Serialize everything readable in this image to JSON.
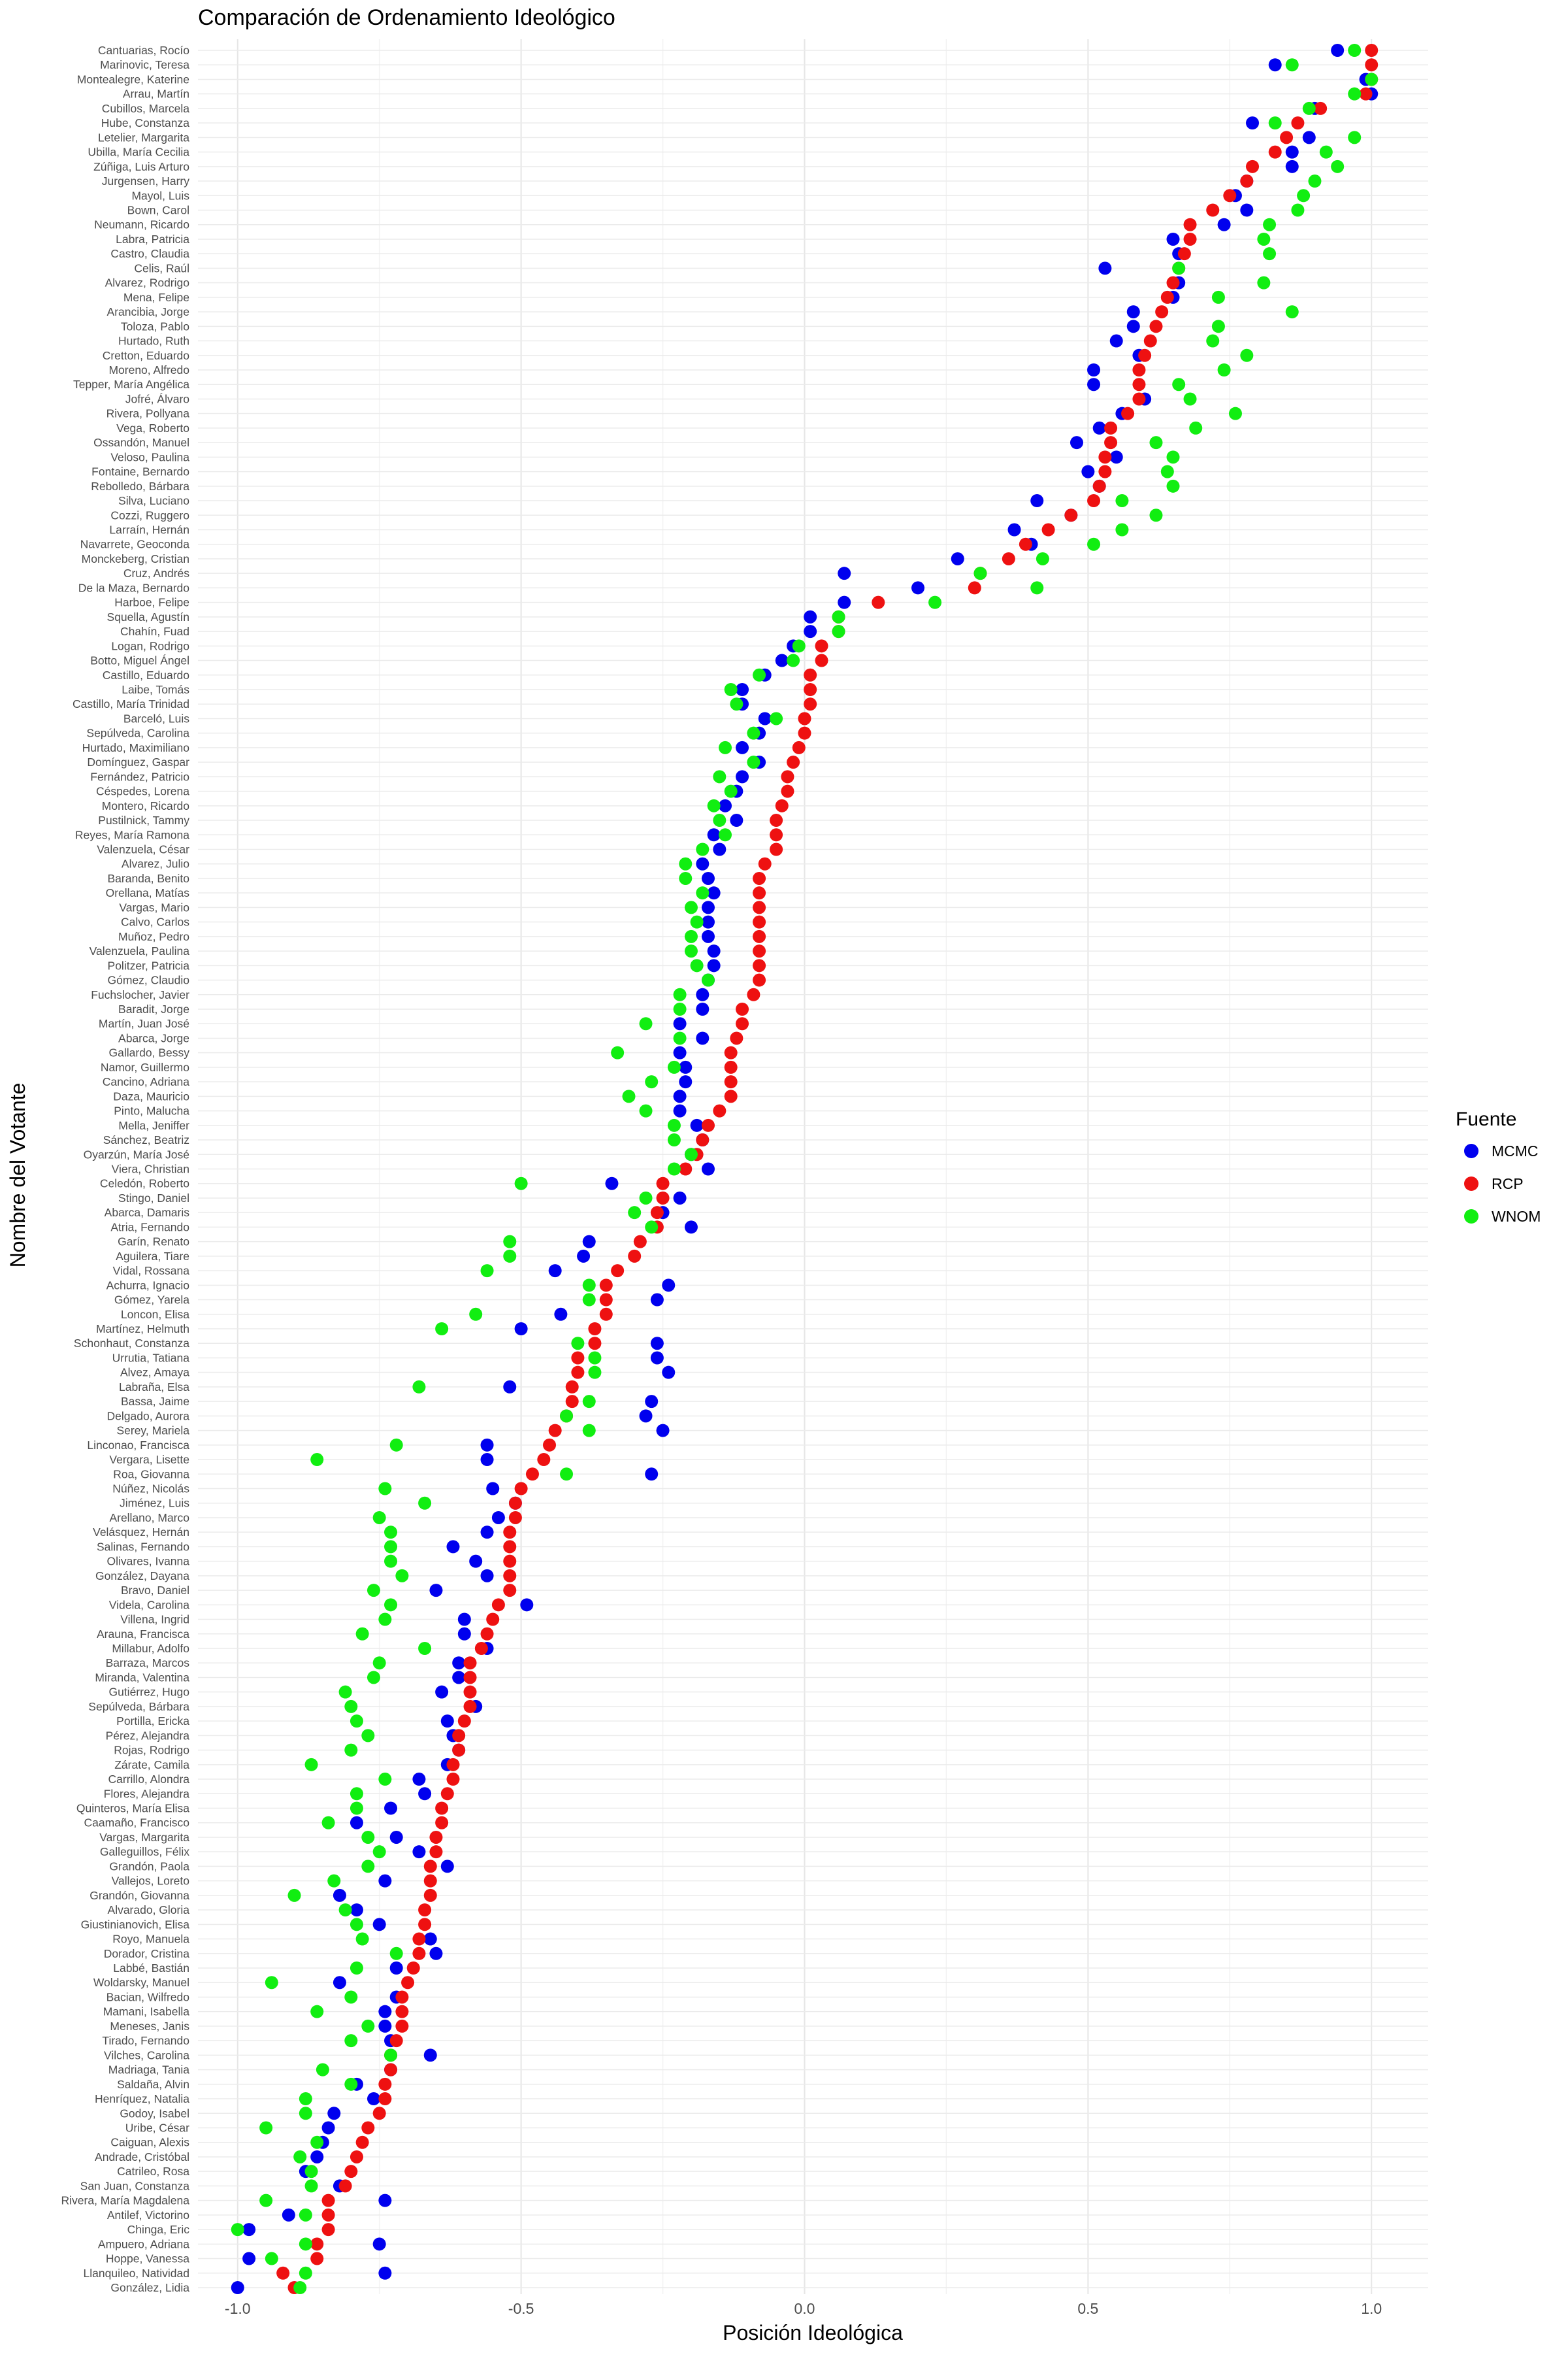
{
  "chart_data": {
    "type": "scatter",
    "title": "Comparación de Ordenamiento Ideológico",
    "xlabel": "Posición Ideológica",
    "ylabel": "Nombre del Votante",
    "xlim": [
      -1.07,
      1.1
    ],
    "xticks": [
      -1.0,
      -0.5,
      0.0,
      0.5,
      1.0
    ],
    "xtick_labels": [
      "-1.0",
      "-0.5",
      "0.0",
      "0.5",
      "1.0"
    ],
    "grid": true,
    "legend_title": "Fuente",
    "legend_position": "right",
    "series": [
      {
        "name": "MCMC",
        "color": "#0000ee"
      },
      {
        "name": "RCP",
        "color": "#ee1111"
      },
      {
        "name": "WNOM",
        "color": "#11ee11"
      }
    ],
    "voters": [
      {
        "name": "Cantuarias, Rocío",
        "MCMC": 0.94,
        "RCP": 1.0,
        "WNOM": 0.97
      },
      {
        "name": "Marinovic, Teresa",
        "MCMC": 0.83,
        "RCP": 1.0,
        "WNOM": 0.86
      },
      {
        "name": "Montealegre, Katerine",
        "MCMC": 0.99,
        "RCP": 1.0,
        "WNOM": 1.0
      },
      {
        "name": "Arrau, Martín",
        "MCMC": 1.0,
        "RCP": 0.99,
        "WNOM": 0.97
      },
      {
        "name": "Cubillos, Marcela",
        "MCMC": 0.9,
        "RCP": 0.91,
        "WNOM": 0.89
      },
      {
        "name": "Hube, Constanza",
        "MCMC": 0.79,
        "RCP": 0.87,
        "WNOM": 0.83
      },
      {
        "name": "Letelier, Margarita",
        "MCMC": 0.89,
        "RCP": 0.85,
        "WNOM": 0.97
      },
      {
        "name": "Ubilla, María Cecilia",
        "MCMC": 0.86,
        "RCP": 0.83,
        "WNOM": 0.92
      },
      {
        "name": "Zúñiga, Luis Arturo",
        "MCMC": 0.86,
        "RCP": 0.79,
        "WNOM": 0.94
      },
      {
        "name": "Jurgensen, Harry",
        "MCMC": 0.78,
        "RCP": 0.78,
        "WNOM": 0.9
      },
      {
        "name": "Mayol, Luis",
        "MCMC": 0.76,
        "RCP": 0.75,
        "WNOM": 0.88
      },
      {
        "name": "Bown, Carol",
        "MCMC": 0.78,
        "RCP": 0.72,
        "WNOM": 0.87
      },
      {
        "name": "Neumann, Ricardo",
        "MCMC": 0.74,
        "RCP": 0.68,
        "WNOM": 0.82
      },
      {
        "name": "Labra, Patricia",
        "MCMC": 0.65,
        "RCP": 0.68,
        "WNOM": 0.81
      },
      {
        "name": "Castro, Claudia",
        "MCMC": 0.66,
        "RCP": 0.67,
        "WNOM": 0.82
      },
      {
        "name": "Celis, Raúl",
        "MCMC": 0.53,
        "RCP": 0.66,
        "WNOM": 0.66
      },
      {
        "name": "Alvarez, Rodrigo",
        "MCMC": 0.66,
        "RCP": 0.65,
        "WNOM": 0.81
      },
      {
        "name": "Mena, Felipe",
        "MCMC": 0.65,
        "RCP": 0.64,
        "WNOM": 0.73
      },
      {
        "name": "Arancibia, Jorge",
        "MCMC": 0.58,
        "RCP": 0.63,
        "WNOM": 0.86
      },
      {
        "name": "Toloza, Pablo",
        "MCMC": 0.58,
        "RCP": 0.62,
        "WNOM": 0.73
      },
      {
        "name": "Hurtado, Ruth",
        "MCMC": 0.55,
        "RCP": 0.61,
        "WNOM": 0.72
      },
      {
        "name": "Cretton, Eduardo",
        "MCMC": 0.59,
        "RCP": 0.6,
        "WNOM": 0.78
      },
      {
        "name": "Moreno, Alfredo",
        "MCMC": 0.51,
        "RCP": 0.59,
        "WNOM": 0.74
      },
      {
        "name": "Tepper, María Angélica",
        "MCMC": 0.51,
        "RCP": 0.59,
        "WNOM": 0.66
      },
      {
        "name": "Jofré, Álvaro",
        "MCMC": 0.6,
        "RCP": 0.59,
        "WNOM": 0.68
      },
      {
        "name": "Rivera, Pollyana",
        "MCMC": 0.56,
        "RCP": 0.57,
        "WNOM": 0.76
      },
      {
        "name": "Vega, Roberto",
        "MCMC": 0.52,
        "RCP": 0.54,
        "WNOM": 0.69
      },
      {
        "name": "Ossandón, Manuel",
        "MCMC": 0.48,
        "RCP": 0.54,
        "WNOM": 0.62
      },
      {
        "name": "Veloso, Paulina",
        "MCMC": 0.55,
        "RCP": 0.53,
        "WNOM": 0.65
      },
      {
        "name": "Fontaine, Bernardo",
        "MCMC": 0.5,
        "RCP": 0.53,
        "WNOM": 0.64
      },
      {
        "name": "Rebolledo, Bárbara",
        "MCMC": 0.52,
        "RCP": 0.52,
        "WNOM": 0.65
      },
      {
        "name": "Silva, Luciano",
        "MCMC": 0.41,
        "RCP": 0.51,
        "WNOM": 0.56
      },
      {
        "name": "Cozzi, Ruggero",
        "MCMC": 0.47,
        "RCP": 0.47,
        "WNOM": 0.62
      },
      {
        "name": "Larraín, Hernán",
        "MCMC": 0.37,
        "RCP": 0.43,
        "WNOM": 0.56
      },
      {
        "name": "Navarrete, Geoconda",
        "MCMC": 0.4,
        "RCP": 0.39,
        "WNOM": 0.51
      },
      {
        "name": "Monckeberg, Cristian",
        "MCMC": 0.27,
        "RCP": 0.36,
        "WNOM": 0.42
      },
      {
        "name": "Cruz, Andrés",
        "MCMC": 0.07,
        "RCP": 0.31,
        "WNOM": 0.31
      },
      {
        "name": "De la Maza, Bernardo",
        "MCMC": 0.2,
        "RCP": 0.3,
        "WNOM": 0.41
      },
      {
        "name": "Harboe, Felipe",
        "MCMC": 0.07,
        "RCP": 0.13,
        "WNOM": 0.23
      },
      {
        "name": "Squella, Agustín",
        "MCMC": 0.01,
        "RCP": 0.06,
        "WNOM": 0.06
      },
      {
        "name": "Chahín, Fuad",
        "MCMC": 0.01,
        "RCP": 0.06,
        "WNOM": 0.06
      },
      {
        "name": "Logan, Rodrigo",
        "MCMC": -0.02,
        "RCP": 0.03,
        "WNOM": -0.01
      },
      {
        "name": "Botto, Miguel Ángel",
        "MCMC": -0.04,
        "RCP": 0.03,
        "WNOM": -0.02
      },
      {
        "name": "Castillo, Eduardo",
        "MCMC": -0.07,
        "RCP": 0.01,
        "WNOM": -0.08
      },
      {
        "name": "Laibe, Tomás",
        "MCMC": -0.11,
        "RCP": 0.01,
        "WNOM": -0.13
      },
      {
        "name": "Castillo, María Trinidad",
        "MCMC": -0.11,
        "RCP": 0.01,
        "WNOM": -0.12
      },
      {
        "name": "Barceló, Luis",
        "MCMC": -0.07,
        "RCP": 0.0,
        "WNOM": -0.05
      },
      {
        "name": "Sepúlveda, Carolina",
        "MCMC": -0.08,
        "RCP": 0.0,
        "WNOM": -0.09
      },
      {
        "name": "Hurtado, Maximiliano",
        "MCMC": -0.11,
        "RCP": -0.01,
        "WNOM": -0.14
      },
      {
        "name": "Domínguez, Gaspar",
        "MCMC": -0.08,
        "RCP": -0.02,
        "WNOM": -0.09
      },
      {
        "name": "Fernández, Patricio",
        "MCMC": -0.11,
        "RCP": -0.03,
        "WNOM": -0.15
      },
      {
        "name": "Céspedes, Lorena",
        "MCMC": -0.12,
        "RCP": -0.03,
        "WNOM": -0.13
      },
      {
        "name": "Montero, Ricardo",
        "MCMC": -0.14,
        "RCP": -0.04,
        "WNOM": -0.16
      },
      {
        "name": "Pustilnick, Tammy",
        "MCMC": -0.12,
        "RCP": -0.05,
        "WNOM": -0.15
      },
      {
        "name": "Reyes, María Ramona",
        "MCMC": -0.16,
        "RCP": -0.05,
        "WNOM": -0.14
      },
      {
        "name": "Valenzuela, César",
        "MCMC": -0.15,
        "RCP": -0.05,
        "WNOM": -0.18
      },
      {
        "name": "Alvarez, Julio",
        "MCMC": -0.18,
        "RCP": -0.07,
        "WNOM": -0.21
      },
      {
        "name": "Baranda, Benito",
        "MCMC": -0.17,
        "RCP": -0.08,
        "WNOM": -0.21
      },
      {
        "name": "Orellana, Matías",
        "MCMC": -0.16,
        "RCP": -0.08,
        "WNOM": -0.18
      },
      {
        "name": "Vargas, Mario",
        "MCMC": -0.17,
        "RCP": -0.08,
        "WNOM": -0.2
      },
      {
        "name": "Calvo, Carlos",
        "MCMC": -0.17,
        "RCP": -0.08,
        "WNOM": -0.19
      },
      {
        "name": "Muñoz, Pedro",
        "MCMC": -0.17,
        "RCP": -0.08,
        "WNOM": -0.2
      },
      {
        "name": "Valenzuela, Paulina",
        "MCMC": -0.16,
        "RCP": -0.08,
        "WNOM": -0.2
      },
      {
        "name": "Politzer, Patricia",
        "MCMC": -0.16,
        "RCP": -0.08,
        "WNOM": -0.19
      },
      {
        "name": "Gómez, Claudio",
        "MCMC": -0.17,
        "RCP": -0.08,
        "WNOM": -0.17
      },
      {
        "name": "Fuchslocher, Javier",
        "MCMC": -0.18,
        "RCP": -0.09,
        "WNOM": -0.22
      },
      {
        "name": "Baradit, Jorge",
        "MCMC": -0.18,
        "RCP": -0.11,
        "WNOM": -0.22
      },
      {
        "name": "Martín, Juan José",
        "MCMC": -0.22,
        "RCP": -0.11,
        "WNOM": -0.28
      },
      {
        "name": "Abarca, Jorge",
        "MCMC": -0.18,
        "RCP": -0.12,
        "WNOM": -0.22
      },
      {
        "name": "Gallardo, Bessy",
        "MCMC": -0.22,
        "RCP": -0.13,
        "WNOM": -0.33
      },
      {
        "name": "Namor, Guillermo",
        "MCMC": -0.21,
        "RCP": -0.13,
        "WNOM": -0.23
      },
      {
        "name": "Cancino, Adriana",
        "MCMC": -0.21,
        "RCP": -0.13,
        "WNOM": -0.27
      },
      {
        "name": "Daza, Mauricio",
        "MCMC": -0.22,
        "RCP": -0.13,
        "WNOM": -0.31
      },
      {
        "name": "Pinto, Malucha",
        "MCMC": -0.22,
        "RCP": -0.15,
        "WNOM": -0.28
      },
      {
        "name": "Mella, Jeniffer",
        "MCMC": -0.19,
        "RCP": -0.17,
        "WNOM": -0.23
      },
      {
        "name": "Sánchez, Beatriz",
        "MCMC": -0.18,
        "RCP": -0.18,
        "WNOM": -0.23
      },
      {
        "name": "Oyarzún, María José",
        "MCMC": -0.2,
        "RCP": -0.19,
        "WNOM": -0.2
      },
      {
        "name": "Viera, Christian",
        "MCMC": -0.17,
        "RCP": -0.21,
        "WNOM": -0.23
      },
      {
        "name": "Celedón, Roberto",
        "MCMC": -0.34,
        "RCP": -0.25,
        "WNOM": -0.5
      },
      {
        "name": "Stingo, Daniel",
        "MCMC": -0.22,
        "RCP": -0.25,
        "WNOM": -0.28
      },
      {
        "name": "Abarca, Damaris",
        "MCMC": -0.25,
        "RCP": -0.26,
        "WNOM": -0.3
      },
      {
        "name": "Atria, Fernando",
        "MCMC": -0.2,
        "RCP": -0.26,
        "WNOM": -0.27
      },
      {
        "name": "Garín, Renato",
        "MCMC": -0.38,
        "RCP": -0.29,
        "WNOM": -0.52
      },
      {
        "name": "Aguilera, Tiare",
        "MCMC": -0.39,
        "RCP": -0.3,
        "WNOM": -0.52
      },
      {
        "name": "Vidal, Rossana",
        "MCMC": -0.44,
        "RCP": -0.33,
        "WNOM": -0.56
      },
      {
        "name": "Achurra, Ignacio",
        "MCMC": -0.24,
        "RCP": -0.35,
        "WNOM": -0.38
      },
      {
        "name": "Gómez, Yarela",
        "MCMC": -0.26,
        "RCP": -0.35,
        "WNOM": -0.38
      },
      {
        "name": "Loncon, Elisa",
        "MCMC": -0.43,
        "RCP": -0.35,
        "WNOM": -0.58
      },
      {
        "name": "Martínez, Helmuth",
        "MCMC": -0.5,
        "RCP": -0.37,
        "WNOM": -0.64
      },
      {
        "name": "Schonhaut, Constanza",
        "MCMC": -0.26,
        "RCP": -0.37,
        "WNOM": -0.4
      },
      {
        "name": "Urrutia, Tatiana",
        "MCMC": -0.26,
        "RCP": -0.4,
        "WNOM": -0.37
      },
      {
        "name": "Alvez, Amaya",
        "MCMC": -0.24,
        "RCP": -0.4,
        "WNOM": -0.37
      },
      {
        "name": "Labraña, Elsa",
        "MCMC": -0.52,
        "RCP": -0.41,
        "WNOM": -0.68
      },
      {
        "name": "Bassa, Jaime",
        "MCMC": -0.27,
        "RCP": -0.41,
        "WNOM": -0.38
      },
      {
        "name": "Delgado, Aurora",
        "MCMC": -0.28,
        "RCP": -0.42,
        "WNOM": -0.42
      },
      {
        "name": "Serey, Mariela",
        "MCMC": -0.25,
        "RCP": -0.44,
        "WNOM": -0.38
      },
      {
        "name": "Linconao, Francisca",
        "MCMC": -0.56,
        "RCP": -0.45,
        "WNOM": -0.72
      },
      {
        "name": "Vergara, Lisette",
        "MCMC": -0.56,
        "RCP": -0.46,
        "WNOM": -0.86
      },
      {
        "name": "Roa, Giovanna",
        "MCMC": -0.27,
        "RCP": -0.48,
        "WNOM": -0.42
      },
      {
        "name": "Núñez, Nicolás",
        "MCMC": -0.55,
        "RCP": -0.5,
        "WNOM": -0.74
      },
      {
        "name": "Jiménez, Luis",
        "MCMC": -0.51,
        "RCP": -0.51,
        "WNOM": -0.67
      },
      {
        "name": "Arellano, Marco",
        "MCMC": -0.54,
        "RCP": -0.51,
        "WNOM": -0.75
      },
      {
        "name": "Velásquez, Hernán",
        "MCMC": -0.56,
        "RCP": -0.52,
        "WNOM": -0.73
      },
      {
        "name": "Salinas, Fernando",
        "MCMC": -0.62,
        "RCP": -0.52,
        "WNOM": -0.73
      },
      {
        "name": "Olivares, Ivanna",
        "MCMC": -0.58,
        "RCP": -0.52,
        "WNOM": -0.73
      },
      {
        "name": "González, Dayana",
        "MCMC": -0.56,
        "RCP": -0.52,
        "WNOM": -0.71
      },
      {
        "name": "Bravo, Daniel",
        "MCMC": -0.65,
        "RCP": -0.52,
        "WNOM": -0.76
      },
      {
        "name": "Videla, Carolina",
        "MCMC": -0.49,
        "RCP": -0.54,
        "WNOM": -0.73
      },
      {
        "name": "Villena, Ingrid",
        "MCMC": -0.6,
        "RCP": -0.55,
        "WNOM": -0.74
      },
      {
        "name": "Arauna, Francisca",
        "MCMC": -0.6,
        "RCP": -0.56,
        "WNOM": -0.78
      },
      {
        "name": "Millabur, Adolfo",
        "MCMC": -0.56,
        "RCP": -0.57,
        "WNOM": -0.67
      },
      {
        "name": "Barraza, Marcos",
        "MCMC": -0.61,
        "RCP": -0.59,
        "WNOM": -0.75
      },
      {
        "name": "Miranda, Valentina",
        "MCMC": -0.61,
        "RCP": -0.59,
        "WNOM": -0.76
      },
      {
        "name": "Gutiérrez, Hugo",
        "MCMC": -0.64,
        "RCP": -0.59,
        "WNOM": -0.81
      },
      {
        "name": "Sepúlveda, Bárbara",
        "MCMC": -0.58,
        "RCP": -0.59,
        "WNOM": -0.8
      },
      {
        "name": "Portilla, Ericka",
        "MCMC": -0.63,
        "RCP": -0.6,
        "WNOM": -0.79
      },
      {
        "name": "Pérez, Alejandra",
        "MCMC": -0.62,
        "RCP": -0.61,
        "WNOM": -0.77
      },
      {
        "name": "Rojas, Rodrigo",
        "MCMC": -0.61,
        "RCP": -0.61,
        "WNOM": -0.8
      },
      {
        "name": "Zárate, Camila",
        "MCMC": -0.63,
        "RCP": -0.62,
        "WNOM": -0.87
      },
      {
        "name": "Carrillo, Alondra",
        "MCMC": -0.68,
        "RCP": -0.62,
        "WNOM": -0.74
      },
      {
        "name": "Flores, Alejandra",
        "MCMC": -0.67,
        "RCP": -0.63,
        "WNOM": -0.79
      },
      {
        "name": "Quinteros, María Elisa",
        "MCMC": -0.73,
        "RCP": -0.64,
        "WNOM": -0.79
      },
      {
        "name": "Caamaño, Francisco",
        "MCMC": -0.79,
        "RCP": -0.64,
        "WNOM": -0.84
      },
      {
        "name": "Vargas, Margarita",
        "MCMC": -0.72,
        "RCP": -0.65,
        "WNOM": -0.77
      },
      {
        "name": "Galleguillos, Félix",
        "MCMC": -0.68,
        "RCP": -0.65,
        "WNOM": -0.75
      },
      {
        "name": "Grandón, Paola",
        "MCMC": -0.63,
        "RCP": -0.66,
        "WNOM": -0.77
      },
      {
        "name": "Vallejos, Loreto",
        "MCMC": -0.74,
        "RCP": -0.66,
        "WNOM": -0.83
      },
      {
        "name": "Grandón, Giovanna",
        "MCMC": -0.82,
        "RCP": -0.66,
        "WNOM": -0.9
      },
      {
        "name": "Alvarado, Gloria",
        "MCMC": -0.79,
        "RCP": -0.67,
        "WNOM": -0.81
      },
      {
        "name": "Giustinianovich, Elisa",
        "MCMC": -0.75,
        "RCP": -0.67,
        "WNOM": -0.79
      },
      {
        "name": "Royo, Manuela",
        "MCMC": -0.66,
        "RCP": -0.68,
        "WNOM": -0.78
      },
      {
        "name": "Dorador, Cristina",
        "MCMC": -0.65,
        "RCP": -0.68,
        "WNOM": -0.72
      },
      {
        "name": "Labbé, Bastián",
        "MCMC": -0.72,
        "RCP": -0.69,
        "WNOM": -0.79
      },
      {
        "name": "Woldarsky, Manuel",
        "MCMC": -0.82,
        "RCP": -0.7,
        "WNOM": -0.94
      },
      {
        "name": "Bacian, Wilfredo",
        "MCMC": -0.72,
        "RCP": -0.71,
        "WNOM": -0.8
      },
      {
        "name": "Mamani, Isabella",
        "MCMC": -0.74,
        "RCP": -0.71,
        "WNOM": -0.86
      },
      {
        "name": "Meneses, Janis",
        "MCMC": -0.74,
        "RCP": -0.71,
        "WNOM": -0.77
      },
      {
        "name": "Tirado, Fernando",
        "MCMC": -0.73,
        "RCP": -0.72,
        "WNOM": -0.8
      },
      {
        "name": "Vilches, Carolina",
        "MCMC": -0.66,
        "RCP": -0.73,
        "WNOM": -0.73
      },
      {
        "name": "Madriaga, Tania",
        "MCMC": -0.73,
        "RCP": -0.73,
        "WNOM": -0.85
      },
      {
        "name": "Saldaña, Alvin",
        "MCMC": -0.79,
        "RCP": -0.74,
        "WNOM": -0.8
      },
      {
        "name": "Henríquez, Natalia",
        "MCMC": -0.76,
        "RCP": -0.74,
        "WNOM": -0.88
      },
      {
        "name": "Godoy, Isabel",
        "MCMC": -0.83,
        "RCP": -0.75,
        "WNOM": -0.88
      },
      {
        "name": "Uribe, César",
        "MCMC": -0.84,
        "RCP": -0.77,
        "WNOM": -0.95
      },
      {
        "name": "Caiguan, Alexis",
        "MCMC": -0.85,
        "RCP": -0.78,
        "WNOM": -0.86
      },
      {
        "name": "Andrade, Cristóbal",
        "MCMC": -0.86,
        "RCP": -0.79,
        "WNOM": -0.89
      },
      {
        "name": "Catrileo, Rosa",
        "MCMC": -0.88,
        "RCP": -0.8,
        "WNOM": -0.87
      },
      {
        "name": "San Juan, Constanza",
        "MCMC": -0.82,
        "RCP": -0.81,
        "WNOM": -0.87
      },
      {
        "name": "Rivera, María Magdalena",
        "MCMC": -0.74,
        "RCP": -0.84,
        "WNOM": -0.95
      },
      {
        "name": "Antilef, Victorino",
        "MCMC": -0.91,
        "RCP": -0.84,
        "WNOM": -0.88
      },
      {
        "name": "Chinga, Eric",
        "MCMC": -0.98,
        "RCP": -0.84,
        "WNOM": -1.0
      },
      {
        "name": "Ampuero, Adriana",
        "MCMC": -0.75,
        "RCP": -0.86,
        "WNOM": -0.88
      },
      {
        "name": "Hoppe, Vanessa",
        "MCMC": -0.98,
        "RCP": -0.86,
        "WNOM": -0.94
      },
      {
        "name": "Llanquileo, Natividad",
        "MCMC": -0.74,
        "RCP": -0.92,
        "WNOM": -0.88
      },
      {
        "name": "González, Lidia",
        "MCMC": -1.0,
        "RCP": -0.9,
        "WNOM": -0.89
      }
    ]
  }
}
